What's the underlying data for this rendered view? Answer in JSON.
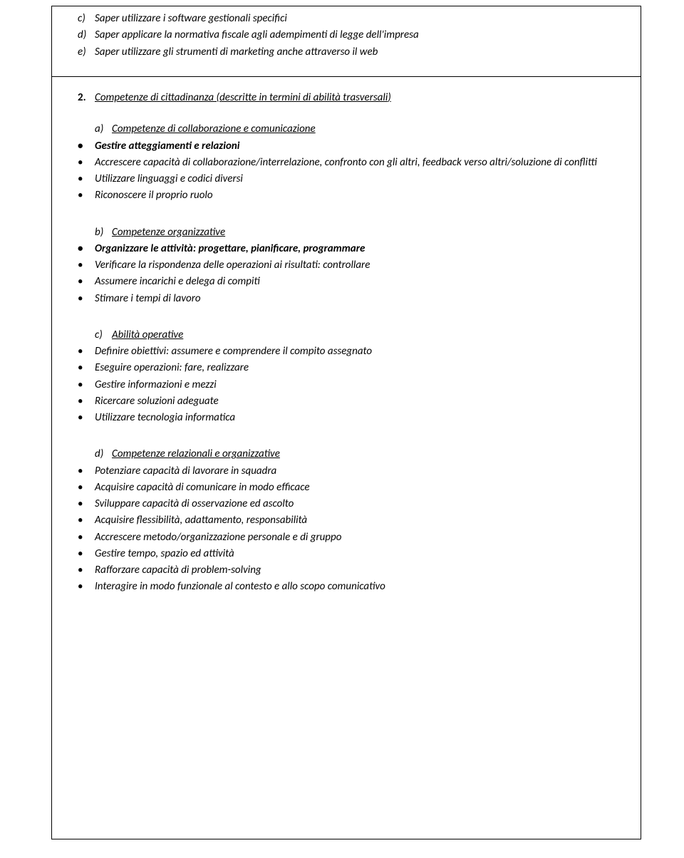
{
  "box1": {
    "items": [
      {
        "marker": "c)",
        "text": "Saper utilizzare i software gestionali specifici"
      },
      {
        "marker": "d)",
        "text": "Saper applicare la normativa fiscale agli adempimenti di legge dell'impresa"
      },
      {
        "marker": "e)",
        "text": "Saper utilizzare gli strumenti di marketing anche attraverso il web"
      }
    ]
  },
  "section2": {
    "num": "2.",
    "title_main": "Competenze di cittadinanza (",
    "title_paren": "descritte in termini di abilità trasversali",
    "title_close": ")"
  },
  "sub_a": {
    "marker": "a)",
    "title": "Competenze di collaborazione e comunicazione",
    "items": [
      "Gestire atteggiamenti e relazioni",
      "Accrescere capacità di collaborazione/interrelazione, confronto con gli altri, feedback verso altri/soluzione di conflitti",
      "Utilizzare linguaggi e codici diversi",
      "Riconoscere il proprio ruolo"
    ]
  },
  "sub_b": {
    "marker": "b)",
    "title": "Competenze organizzative",
    "lead_bold": "Organizzare le attività: progettare, pianificare, programmare",
    "items": [
      "Verificare la rispondenza delle operazioni ai risultati: controllare",
      "Assumere incarichi e delega di compiti",
      "Stimare i tempi di lavoro"
    ]
  },
  "sub_c": {
    "marker": "c)",
    "title": "Abilità operative",
    "items": [
      "Definire obiettivi: assumere e comprendere il compito assegnato",
      "Eseguire operazioni: fare, realizzare",
      "Gestire informazioni e mezzi",
      "Ricercare soluzioni adeguate",
      "Utilizzare tecnologia informatica"
    ]
  },
  "sub_d": {
    "marker": "d)",
    "title": "Competenze relazionali e organizzative",
    "items": [
      "Potenziare capacità di lavorare in squadra",
      "Acquisire capacità di comunicare in modo efficace",
      "Sviluppare capacità di osservazione ed ascolto",
      "Acquisire flessibilità, adattamento, responsabilità",
      "Accrescere metodo/organizzazione personale e di gruppo",
      "Gestire tempo, spazio ed attività",
      "Rafforzare capacità di problem-solving",
      "Interagire in modo  funzionale al contesto e allo scopo comunicativo"
    ]
  }
}
